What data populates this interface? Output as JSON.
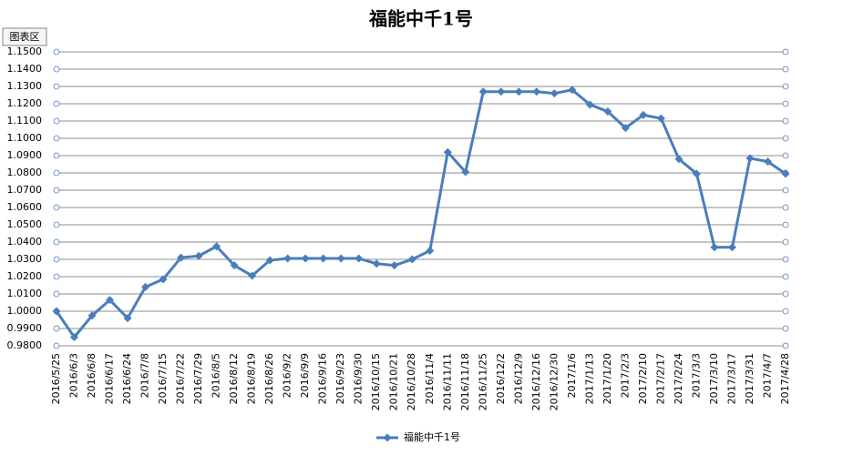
{
  "chart_data": {
    "type": "line",
    "title": "福能中千1号",
    "chart_area_label": "图表区",
    "categories": [
      "2016/5/25",
      "2016/6/3",
      "2016/6/8",
      "2016/6/17",
      "2016/6/24",
      "2016/7/8",
      "2016/7/15",
      "2016/7/22",
      "2016/7/29",
      "2016/8/5",
      "2016/8/12",
      "2016/8/19",
      "2016/8/26",
      "2016/9/2",
      "2016/9/9",
      "2016/9/16",
      "2016/9/23",
      "2016/9/30",
      "2016/10/15",
      "2016/10/21",
      "2016/10/28",
      "2016/11/4",
      "2016/11/11",
      "2016/11/18",
      "2016/11/25",
      "2016/12/2",
      "2016/12/9",
      "2016/12/16",
      "2016/12/30",
      "2017/1/6",
      "2017/1/13",
      "2017/1/20",
      "2017/2/3",
      "2017/2/10",
      "2017/2/17",
      "2017/2/24",
      "2017/3/3",
      "2017/3/10",
      "2017/3/17",
      "2017/3/31",
      "2017/4/7",
      "2017/4/28"
    ],
    "series": [
      {
        "name": "福能中千1号",
        "color": "#4a7ebb",
        "values": [
          1.0,
          0.985,
          0.9975,
          1.0065,
          0.996,
          1.014,
          1.0185,
          1.031,
          1.032,
          1.0375,
          1.0265,
          1.0205,
          1.0295,
          1.0305,
          1.0305,
          1.0305,
          1.0305,
          1.0305,
          1.0275,
          1.0265,
          1.03,
          1.035,
          1.092,
          1.0805,
          1.127,
          1.127,
          1.127,
          1.127,
          1.126,
          1.128,
          1.1195,
          1.1155,
          1.106,
          1.1135,
          1.1115,
          1.088,
          1.0795,
          1.037,
          1.037,
          1.0885,
          1.0865,
          1.0795
        ]
      }
    ],
    "ylim": [
      0.98,
      1.15
    ],
    "yticks": [
      {
        "value": 0.98,
        "label": "0.9800"
      },
      {
        "value": 0.99,
        "label": "0.9900"
      },
      {
        "value": 1.0,
        "label": "1.0000"
      },
      {
        "value": 1.01,
        "label": "1.0100"
      },
      {
        "value": 1.02,
        "label": "1.0200"
      },
      {
        "value": 1.03,
        "label": "1.0300"
      },
      {
        "value": 1.04,
        "label": "1.0400"
      },
      {
        "value": 1.05,
        "label": "1.0500"
      },
      {
        "value": 1.06,
        "label": "1.0600"
      },
      {
        "value": 1.07,
        "label": "1.0700"
      },
      {
        "value": 1.08,
        "label": "1.0800"
      },
      {
        "value": 1.09,
        "label": "1.0900"
      },
      {
        "value": 1.1,
        "label": "1.1000"
      },
      {
        "value": 1.11,
        "label": "1.1100"
      },
      {
        "value": 1.12,
        "label": "1.1200"
      },
      {
        "value": 1.13,
        "label": "1.1300"
      },
      {
        "value": 1.14,
        "label": "1.1400"
      },
      {
        "value": 1.15,
        "label": "1.1500"
      }
    ],
    "grid": true,
    "legend": "bottom"
  }
}
